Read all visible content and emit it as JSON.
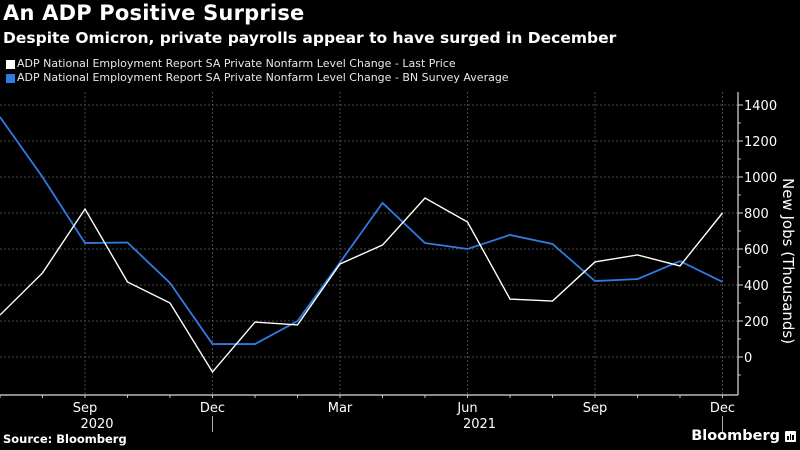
{
  "header": {
    "title": "An ADP Positive Surprise",
    "subtitle": "Despite Omicron, private payrolls appear to have surged in December"
  },
  "footer": {
    "source": "Source: Bloomberg",
    "brand": "Bloomberg",
    "brand_icon": "bar-chart-icon"
  },
  "colors": {
    "background": "#000000",
    "last_price": "#ffffff",
    "survey_average": "#2f7be0",
    "grid": "#555555"
  },
  "chart_data": {
    "type": "line",
    "title": "An ADP Positive Surprise",
    "subtitle": "Despite Omicron, private payrolls appear to have surged in December",
    "xlabel": "",
    "ylabel": "New Jobs (Thousands)",
    "y_axis_side": "right",
    "ylim": [
      -210,
      1470
    ],
    "yticks": [
      0,
      200,
      400,
      600,
      800,
      1000,
      1200,
      1400
    ],
    "grid": true,
    "legend_position": "top-left",
    "x": [
      "2020-07",
      "2020-08",
      "2020-09",
      "2020-10",
      "2020-11",
      "2020-12",
      "2021-01",
      "2021-02",
      "2021-03",
      "2021-04",
      "2021-05",
      "2021-06",
      "2021-07",
      "2021-08",
      "2021-09",
      "2021-10",
      "2021-11",
      "2021-12"
    ],
    "xtick_labels": [
      {
        "index": 2,
        "label": "Sep",
        "year": "2020"
      },
      {
        "index": 5,
        "label": "Dec",
        "year": ""
      },
      {
        "index": 8,
        "label": "Mar",
        "year": ""
      },
      {
        "index": 11,
        "label": "Jun",
        "year": "2021"
      },
      {
        "index": 14,
        "label": "Sep",
        "year": ""
      },
      {
        "index": 17,
        "label": "Dec",
        "year": ""
      }
    ],
    "series": [
      {
        "name": "ADP National Employment Report SA Private Nonfarm Level Change - Last Price",
        "color": "#ffffff",
        "values": [
          233,
          467,
          822,
          417,
          300,
          -83,
          194,
          178,
          517,
          622,
          883,
          750,
          322,
          311,
          528,
          567,
          506,
          800
        ]
      },
      {
        "name": "ADP National Employment Report SA Private Nonfarm Level Change - BN Survey Average",
        "color": "#2f7be0",
        "values": [
          1333,
          1000,
          633,
          636,
          411,
          72,
          72,
          200,
          525,
          856,
          633,
          600,
          678,
          628,
          422,
          433,
          533,
          417
        ]
      }
    ]
  }
}
